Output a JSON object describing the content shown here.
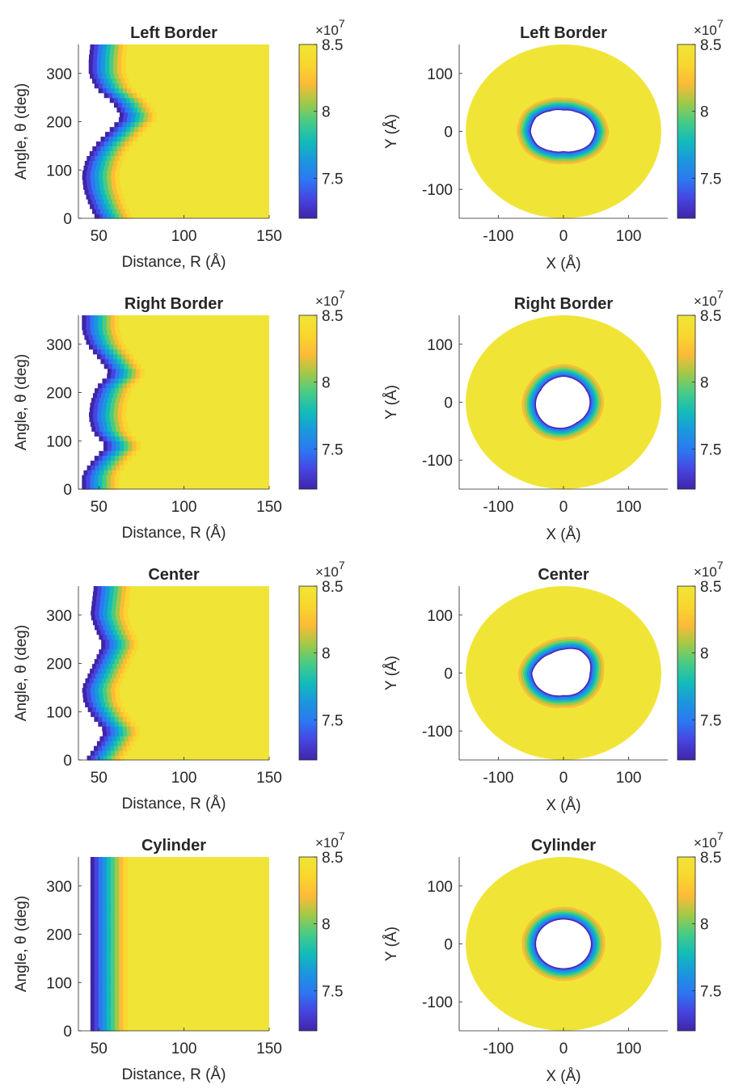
{
  "colormap": [
    "#3e26a8",
    "#4744e0",
    "#2c78f2",
    "#1b97dd",
    "#12bcb9",
    "#47cb86",
    "#a2c947",
    "#fdbb37",
    "#f8d72e",
    "#f0e537"
  ],
  "colorbar": {
    "ticks": [
      "7.5",
      "8",
      "8.5"
    ],
    "exponent_base": "×10",
    "exponent_power": "7"
  },
  "panels_polar": [
    {
      "title": "Left Border",
      "xlabel": "Distance, R (Å)",
      "ylabel": "Angle, θ (deg)",
      "xticks": [
        "50",
        "100",
        "150"
      ],
      "yticks": [
        "0",
        "100",
        "200",
        "300"
      ]
    },
    {
      "title": "Right Border",
      "xlabel": "Distance, R (Å)",
      "ylabel": "Angle, θ (deg)",
      "xticks": [
        "50",
        "100",
        "150"
      ],
      "yticks": [
        "0",
        "100",
        "200",
        "300"
      ]
    },
    {
      "title": "Center",
      "xlabel": "Distance, R (Å)",
      "ylabel": "Angle, θ (deg)",
      "xticks": [
        "50",
        "100",
        "150"
      ],
      "yticks": [
        "0",
        "100",
        "200",
        "300"
      ]
    },
    {
      "title": "Cylinder",
      "xlabel": "Distance, R (Å)",
      "ylabel": "Angle, θ (deg)",
      "xticks": [
        "50",
        "100",
        "150"
      ],
      "yticks": [
        "0",
        "100",
        "200",
        "300"
      ]
    }
  ],
  "panels_cart": [
    {
      "title": "Left Border",
      "xlabel": "X (Å)",
      "ylabel": "Y (Å)",
      "xticks": [
        "-100",
        "0",
        "100"
      ],
      "yticks": [
        "-100",
        "0",
        "100"
      ]
    },
    {
      "title": "Right Border",
      "xlabel": "X (Å)",
      "ylabel": "Y (Å)",
      "xticks": [
        "-100",
        "0",
        "100"
      ],
      "yticks": [
        "-100",
        "0",
        "100"
      ]
    },
    {
      "title": "Center",
      "xlabel": "X (Å)",
      "ylabel": "Y (Å)",
      "xticks": [
        "-100",
        "0",
        "100"
      ],
      "yticks": [
        "-100",
        "0",
        "100"
      ]
    },
    {
      "title": "Cylinder",
      "xlabel": "X (Å)",
      "ylabel": "Y (Å)",
      "xticks": [
        "-100",
        "0",
        "100"
      ],
      "yticks": [
        "-100",
        "0",
        "100"
      ]
    }
  ],
  "chart_data": [
    {
      "type": "heatmap",
      "title": "Left Border",
      "xlabel": "Distance, R (Å)",
      "ylabel": "Angle, θ (deg)",
      "xlim": [
        38,
        150
      ],
      "ylim": [
        0,
        360
      ],
      "clim": [
        72000000.0,
        85000000.0
      ],
      "boundary": {
        "theta": [
          0,
          30,
          60,
          90,
          120,
          150,
          180,
          210,
          240,
          270,
          300,
          330,
          360
        ],
        "r": [
          48,
          44,
          41,
          40,
          42,
          47,
          55,
          63,
          58,
          48,
          44,
          44,
          45
        ]
      }
    },
    {
      "type": "heatmap",
      "title": "Left Border",
      "xlabel": "X (Å)",
      "ylabel": "Y (Å)",
      "xlim": [
        -160,
        160
      ],
      "ylim": [
        -150,
        150
      ],
      "clim": [
        72000000.0,
        85000000.0
      ]
    },
    {
      "type": "heatmap",
      "title": "Right Border",
      "xlabel": "Distance, R (Å)",
      "ylabel": "Angle, θ (deg)",
      "xlim": [
        38,
        150
      ],
      "ylim": [
        0,
        360
      ],
      "clim": [
        72000000.0,
        85000000.0
      ],
      "boundary": {
        "theta": [
          0,
          30,
          60,
          90,
          120,
          150,
          180,
          210,
          240,
          270,
          300,
          330,
          360
        ],
        "r": [
          40,
          40,
          46,
          54,
          46,
          44,
          45,
          48,
          56,
          50,
          43,
          40,
          40
        ]
      }
    },
    {
      "type": "heatmap",
      "title": "Right Border",
      "xlabel": "X (Å)",
      "ylabel": "Y (Å)",
      "xlim": [
        -160,
        160
      ],
      "ylim": [
        -150,
        150
      ],
      "clim": [
        72000000.0,
        85000000.0
      ]
    },
    {
      "type": "heatmap",
      "title": "Center",
      "xlabel": "Distance, R (Å)",
      "ylabel": "Angle, θ (deg)",
      "xlim": [
        38,
        150
      ],
      "ylim": [
        0,
        360
      ],
      "clim": [
        72000000.0,
        85000000.0
      ],
      "boundary": {
        "theta": [
          0,
          30,
          60,
          90,
          120,
          150,
          180,
          210,
          240,
          270,
          300,
          330,
          360
        ],
        "r": [
          42,
          48,
          53,
          46,
          41,
          40,
          44,
          48,
          52,
          48,
          45,
          46,
          47
        ]
      }
    },
    {
      "type": "heatmap",
      "title": "Center",
      "xlabel": "X (Å)",
      "ylabel": "Y (Å)",
      "xlim": [
        -160,
        160
      ],
      "ylim": [
        -150,
        150
      ],
      "clim": [
        72000000.0,
        85000000.0
      ]
    },
    {
      "type": "heatmap",
      "title": "Cylinder",
      "xlabel": "Distance, R (Å)",
      "ylabel": "Angle, θ (deg)",
      "xlim": [
        38,
        150
      ],
      "ylim": [
        0,
        360
      ],
      "clim": [
        72000000.0,
        85000000.0
      ],
      "boundary": {
        "theta": [
          0,
          360
        ],
        "r": [
          45,
          45
        ]
      }
    },
    {
      "type": "heatmap",
      "title": "Cylinder",
      "xlabel": "X (Å)",
      "ylabel": "Y (Å)",
      "xlim": [
        -160,
        160
      ],
      "ylim": [
        -150,
        150
      ],
      "clim": [
        72000000.0,
        85000000.0
      ]
    }
  ]
}
